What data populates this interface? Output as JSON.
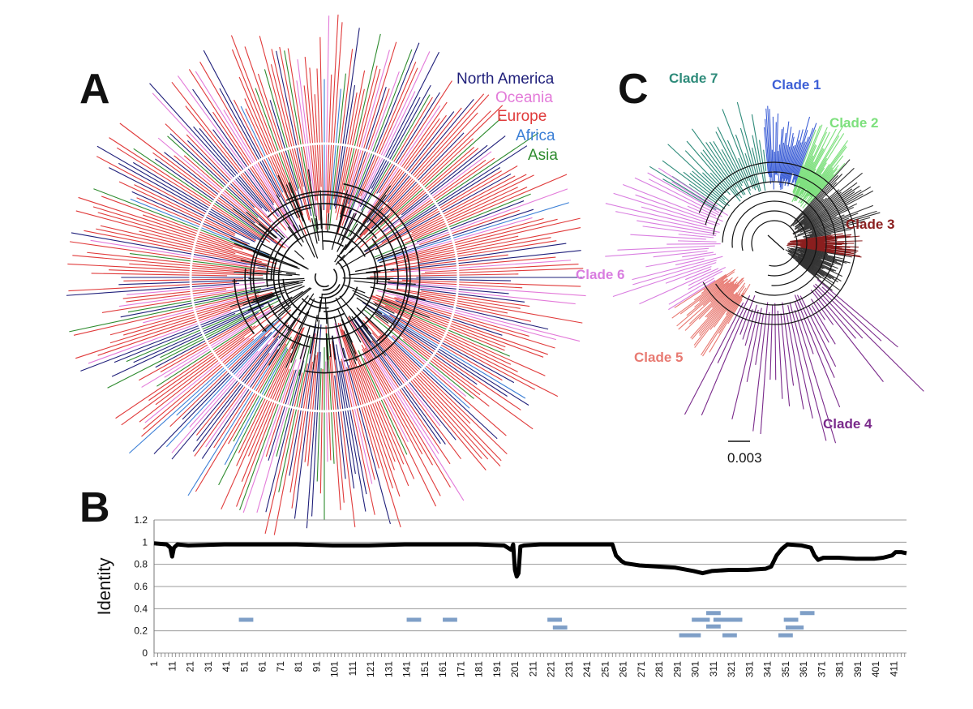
{
  "panels": {
    "a_letter": "A",
    "b_letter": "B",
    "c_letter": "C"
  },
  "legend": [
    {
      "label": "North America",
      "color": "#1f1f7a"
    },
    {
      "label": "Oceania",
      "color": "#e37ad9"
    },
    {
      "label": "Europe",
      "color": "#e03a3a"
    },
    {
      "label": "Africa",
      "color": "#3b7fd6"
    },
    {
      "label": "Asia",
      "color": "#2e8b2e"
    }
  ],
  "clades": [
    {
      "label": "Clade 7",
      "color": "#2e8b7a"
    },
    {
      "label": "Clade 1",
      "color": "#3d5fd6"
    },
    {
      "label": "Clade 2",
      "color": "#7de07d"
    },
    {
      "label": "Clade 3",
      "color": "#8b1f1f"
    },
    {
      "label": "Clade 6",
      "color": "#d97de0"
    },
    {
      "label": "Clade 5",
      "color": "#e87a72"
    },
    {
      "label": "Clade 4",
      "color": "#7a2a8b"
    }
  ],
  "scale_bar": "0.003",
  "chart_data": {
    "type": "line",
    "title": "",
    "xlabel": "",
    "ylabel": "Identity",
    "ylim": [
      0,
      1.2
    ],
    "yticks": [
      "0",
      "0.2",
      "0.4",
      "0.6",
      "0.8",
      "1",
      "1.2"
    ],
    "xlim": [
      1,
      418
    ],
    "xticks": [
      "1",
      "11",
      "21",
      "31",
      "41",
      "51",
      "61",
      "71",
      "81",
      "91",
      "101",
      "111",
      "121",
      "131",
      "141",
      "151",
      "161",
      "171",
      "181",
      "191",
      "201",
      "211",
      "221",
      "231",
      "241",
      "251",
      "261",
      "271",
      "281",
      "291",
      "301",
      "311",
      "321",
      "331",
      "341",
      "351",
      "361",
      "371",
      "381",
      "391",
      "401",
      "411"
    ],
    "series": [
      {
        "name": "Identity",
        "x": [
          1,
          8,
          10,
          11,
          12,
          14,
          20,
          40,
          60,
          80,
          100,
          120,
          140,
          160,
          180,
          195,
          199,
          200,
          201,
          202,
          203,
          204,
          206,
          215,
          240,
          255,
          257,
          260,
          262,
          270,
          280,
          290,
          300,
          305,
          310,
          320,
          330,
          340,
          343,
          346,
          349,
          352,
          360,
          365,
          367,
          369,
          372,
          380,
          390,
          400,
          405,
          410,
          412,
          415,
          418
        ],
        "y": [
          0.99,
          0.98,
          0.95,
          0.87,
          0.95,
          0.98,
          0.97,
          0.98,
          0.98,
          0.98,
          0.97,
          0.97,
          0.98,
          0.98,
          0.98,
          0.97,
          0.93,
          0.98,
          0.75,
          0.69,
          0.72,
          0.96,
          0.97,
          0.98,
          0.98,
          0.98,
          0.88,
          0.83,
          0.81,
          0.79,
          0.78,
          0.77,
          0.74,
          0.72,
          0.74,
          0.75,
          0.75,
          0.76,
          0.78,
          0.88,
          0.94,
          0.98,
          0.97,
          0.95,
          0.88,
          0.84,
          0.86,
          0.86,
          0.85,
          0.85,
          0.86,
          0.88,
          0.91,
          0.91,
          0.9
        ]
      }
    ],
    "segments": [
      {
        "x0": 48,
        "x1": 56,
        "y": 0.3
      },
      {
        "x0": 141,
        "x1": 149,
        "y": 0.3
      },
      {
        "x0": 161,
        "x1": 169,
        "y": 0.3
      },
      {
        "x0": 219,
        "x1": 227,
        "y": 0.3
      },
      {
        "x0": 222,
        "x1": 230,
        "y": 0.23
      },
      {
        "x0": 292,
        "x1": 304,
        "y": 0.16
      },
      {
        "x0": 299,
        "x1": 309,
        "y": 0.3
      },
      {
        "x0": 307,
        "x1": 315,
        "y": 0.36
      },
      {
        "x0": 307,
        "x1": 315,
        "y": 0.24
      },
      {
        "x0": 311,
        "x1": 327,
        "y": 0.3
      },
      {
        "x0": 316,
        "x1": 324,
        "y": 0.16
      },
      {
        "x0": 347,
        "x1": 355,
        "y": 0.16
      },
      {
        "x0": 350,
        "x1": 358,
        "y": 0.3
      },
      {
        "x0": 351,
        "x1": 361,
        "y": 0.23
      },
      {
        "x0": 359,
        "x1": 367,
        "y": 0.36
      }
    ]
  }
}
